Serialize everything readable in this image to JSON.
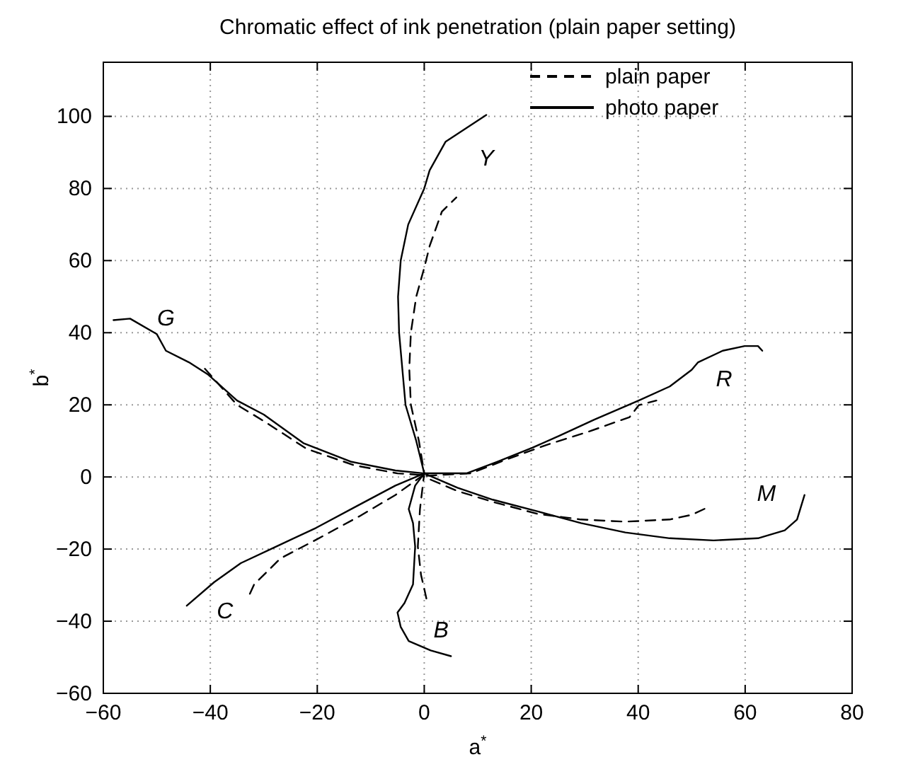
{
  "chart_data": {
    "type": "line",
    "title": "Chromatic effect of ink penetration (plain paper setting)",
    "xlabel": "a$^{*}$",
    "ylabel": "b$^{*}$",
    "xlim": [
      -60,
      80
    ],
    "ylim": [
      -60,
      115
    ],
    "xticks": [
      -60,
      -40,
      -20,
      0,
      20,
      40,
      60,
      80
    ],
    "yticks": [
      -60,
      -40,
      -20,
      0,
      20,
      40,
      60,
      80,
      100
    ],
    "grid": true,
    "legend": "top right",
    "series": [
      {
        "name": "plain paper",
        "color": "#000000",
        "line_style": "dashed",
        "x": [
          0.4,
          0,
          -0.6,
          -1.2,
          -0.8,
          0,
          -1,
          -2.5,
          -2.8,
          -2.5,
          -1.5,
          0,
          1,
          3.3,
          6
        ],
        "values": [
          -33.7,
          -31,
          -27.2,
          -19.3,
          -8.9,
          1,
          10,
          20,
          30,
          40,
          50,
          58,
          64,
          73.6,
          77.5
        ]
      },
      {
        "name": "photo paper",
        "color": "#000000",
        "line_style": "solid",
        "x": [
          5,
          1.2,
          -2.9,
          -4.4,
          -5,
          -3.7,
          -2.1,
          -1.7,
          -2.1,
          -2.9,
          -1.7,
          0,
          -1.5,
          -3.5,
          -4.1,
          -4.7,
          -4.9,
          -4.4,
          -3,
          0,
          1,
          4,
          11.6
        ],
        "values": [
          -49.7,
          -48.1,
          -45.5,
          -41.6,
          -37.6,
          -35,
          -29.8,
          -19.3,
          -12.8,
          -8.9,
          -2.4,
          1,
          10,
          20,
          30,
          40,
          50,
          60,
          70,
          80,
          85,
          93,
          100.4
        ]
      },
      {
        "color": "#000000",
        "line_style": "dashed",
        "x": [
          -41,
          -35,
          -30,
          -22,
          -13,
          -5,
          0,
          0,
          8.7,
          15.3,
          22.7,
          31,
          38.4,
          40.1,
          43.4
        ],
        "values": [
          30,
          20,
          15.5,
          7.8,
          3.2,
          1,
          0.5,
          0.3,
          1,
          4.8,
          8.8,
          12.7,
          16.6,
          19.9,
          21.2
        ]
      },
      {
        "color": "#000000",
        "line_style": "solid",
        "x": [
          -58.1,
          -55,
          -50,
          -48.3,
          -44,
          -40.5,
          -35,
          -30,
          -22.6,
          -13.6,
          -5.4,
          0,
          7.9,
          13.6,
          20.2,
          25.2,
          31.8,
          40.1,
          45.9,
          50,
          51.2,
          55.8,
          59.9,
          62.4,
          63.2
        ],
        "values": [
          43.5,
          43.9,
          39.6,
          35,
          31.8,
          28.5,
          21.2,
          17.3,
          9.4,
          4.2,
          1.8,
          1,
          1,
          4.2,
          8.1,
          11.4,
          15.9,
          21.2,
          25.1,
          29.7,
          31.8,
          35,
          36.3,
          36.3,
          35
        ]
      },
      {
        "color": "#000000",
        "line_style": "dashed",
        "x": [
          -32.6,
          -31.8,
          -26.9,
          -20.2,
          -12,
          -5.4,
          -0.4,
          0,
          6.2,
          12.8,
          21.1,
          29.3,
          37.6,
          45.9,
          50,
          52.9
        ],
        "values": [
          -32.4,
          -29.8,
          -22.6,
          -17.4,
          -10.8,
          -5,
          0.3,
          0,
          -3.9,
          -6.9,
          -10.2,
          -11.8,
          -12.4,
          -11.8,
          -10.5,
          -8.5
        ]
      },
      {
        "color": "#000000",
        "line_style": "solid",
        "x": [
          -44.4,
          -39.3,
          -34.3,
          -27.7,
          -20.2,
          -12,
          -5.4,
          0,
          6.2,
          12.8,
          21.1,
          29.3,
          37.6,
          45.9,
          54.1,
          62.4,
          67.4,
          69.7,
          71.1
        ],
        "values": [
          -35.7,
          -29.2,
          -23.9,
          -19.3,
          -14.1,
          -7.6,
          -2.4,
          1,
          -3,
          -6.3,
          -9.5,
          -12.8,
          -15.4,
          -17,
          -17.6,
          -17,
          -14.8,
          -11.8,
          -5
        ]
      }
    ],
    "annotations": [
      "Y",
      "B",
      "G",
      "C",
      "R",
      "M"
    ]
  }
}
